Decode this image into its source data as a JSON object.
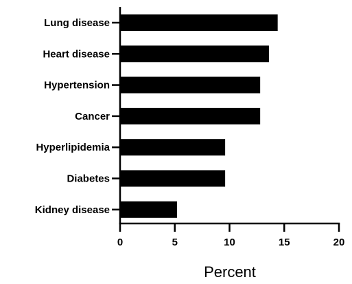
{
  "chart_data": {
    "type": "bar",
    "orientation": "horizontal",
    "categories": [
      "Lung disease",
      "Heart disease",
      "Hypertension",
      "Cancer",
      "Hyperlipidemia",
      "Diabetes",
      "Kidney disease"
    ],
    "values": [
      14.4,
      13.6,
      12.8,
      12.8,
      9.6,
      9.6,
      5.2
    ],
    "title": "",
    "xlabel": "Percent",
    "ylabel": "",
    "xlim": [
      0,
      20
    ],
    "x_ticks": [
      0,
      5,
      10,
      15,
      20
    ],
    "x_tick_labels": [
      "0",
      "5",
      "10",
      "15",
      "20"
    ],
    "grid": false,
    "legend": "none",
    "bar_color": "#000000"
  }
}
